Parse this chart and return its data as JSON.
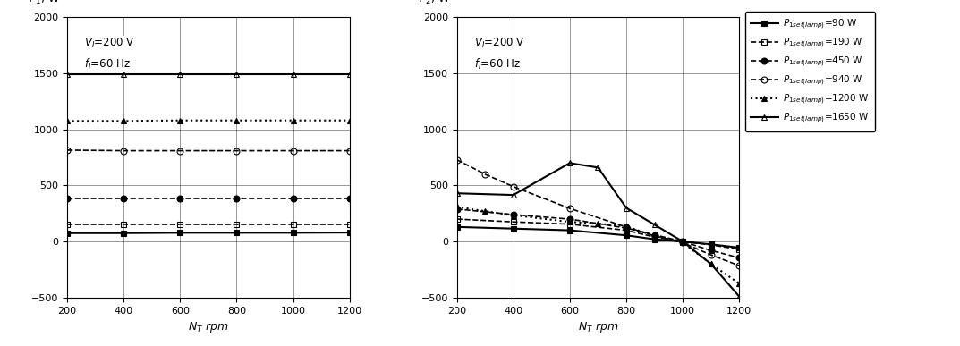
{
  "x_ticks": [
    200,
    400,
    600,
    800,
    1000,
    1200
  ],
  "xlim": [
    200,
    1200
  ],
  "ylim": [
    -500,
    2000
  ],
  "y_ticks": [
    -500,
    0,
    500,
    1000,
    1500,
    2000
  ],
  "ylabel_left": "$P_1$, W",
  "ylabel_right": "$P_2$, W",
  "xlabel": "$N_T$ rpm",
  "annotation": "$V_I$=200 V\n$f_I$=60 Hz",
  "series": [
    {
      "label_val": 90,
      "p1_x": [
        200,
        400,
        600,
        800,
        1000,
        1200
      ],
      "p1_y": [
        75,
        75,
        78,
        78,
        78,
        80
      ],
      "p2_x": [
        200,
        400,
        600,
        800,
        900,
        1000,
        1100,
        1200
      ],
      "p2_y": [
        130,
        115,
        100,
        55,
        20,
        0,
        -25,
        -55
      ],
      "marker": "s",
      "fillstyle": "full",
      "linestyle": "-",
      "lw": 1.5
    },
    {
      "label_val": 190,
      "p1_x": [
        200,
        400,
        600,
        800,
        1000,
        1200
      ],
      "p1_y": [
        155,
        155,
        155,
        155,
        155,
        155
      ],
      "p2_x": [
        200,
        400,
        600,
        800,
        900,
        1000,
        1100,
        1200
      ],
      "p2_y": [
        200,
        175,
        155,
        100,
        40,
        0,
        -30,
        -70
      ],
      "marker": "s",
      "fillstyle": "none",
      "linestyle": "--",
      "lw": 1.2
    },
    {
      "label_val": 450,
      "p1_x": [
        200,
        400,
        600,
        800,
        1000,
        1200
      ],
      "p1_y": [
        380,
        380,
        380,
        380,
        380,
        380
      ],
      "p2_x": [
        200,
        400,
        600,
        800,
        900,
        1000,
        1100,
        1200
      ],
      "p2_y": [
        290,
        240,
        200,
        120,
        60,
        0,
        -80,
        -145
      ],
      "marker": "o",
      "fillstyle": "full",
      "linestyle": "--",
      "lw": 1.2
    },
    {
      "label_val": 940,
      "p1_x": [
        200,
        400,
        600,
        800,
        1000,
        1200
      ],
      "p1_y": [
        815,
        810,
        810,
        810,
        810,
        810
      ],
      "p2_x": [
        200,
        300,
        400,
        600,
        800,
        900,
        1000,
        1100,
        1200
      ],
      "p2_y": [
        730,
        600,
        490,
        295,
        130,
        50,
        -10,
        -120,
        -215
      ],
      "marker": "o",
      "fillstyle": "none",
      "linestyle": "--",
      "lw": 1.2
    },
    {
      "label_val": 1200,
      "p1_x": [
        200,
        400,
        600,
        800,
        1000,
        1200
      ],
      "p1_y": [
        1075,
        1075,
        1080,
        1080,
        1080,
        1080
      ],
      "p2_x": [
        200,
        300,
        400,
        600,
        700,
        800,
        900,
        1000,
        1100,
        1200
      ],
      "p2_y": [
        310,
        270,
        235,
        175,
        160,
        135,
        50,
        -10,
        -200,
        -375
      ],
      "marker": "^",
      "fillstyle": "full",
      "linestyle": ":",
      "lw": 1.5
    },
    {
      "label_val": 1650,
      "p1_x": [
        200,
        400,
        600,
        800,
        1000,
        1200
      ],
      "p1_y": [
        1490,
        1490,
        1490,
        1490,
        1490,
        1490
      ],
      "p2_x": [
        200,
        400,
        600,
        700,
        800,
        900,
        1000,
        1100,
        1200
      ],
      "p2_y": [
        430,
        415,
        700,
        660,
        300,
        150,
        0,
        -200,
        -490
      ],
      "marker": "^",
      "fillstyle": "none",
      "linestyle": "-",
      "lw": 1.5
    }
  ],
  "legend_entries": [
    {
      "label": "$P_{1set(lamp)}$=90 W",
      "marker": "s",
      "fillstyle": "full",
      "linestyle": "-",
      "lw": 1.5
    },
    {
      "label": "$P_{1set(lamp)}$=190 W",
      "marker": "s",
      "fillstyle": "none",
      "linestyle": "--",
      "lw": 1.2
    },
    {
      "label": "$P_{1set(lamp)}$=450 W",
      "marker": "o",
      "fillstyle": "full",
      "linestyle": "--",
      "lw": 1.2
    },
    {
      "label": "$P_{1set(lamp)}$=940 W",
      "marker": "o",
      "fillstyle": "none",
      "linestyle": "--",
      "lw": 1.2
    },
    {
      "label": "$P_{1set(lamp)}$=1200 W",
      "marker": "^",
      "fillstyle": "full",
      "linestyle": ":",
      "lw": 1.5
    },
    {
      "label": "$P_{1set(lamp)}$=1650 W",
      "marker": "^",
      "fillstyle": "none",
      "linestyle": "-",
      "lw": 1.5
    }
  ]
}
